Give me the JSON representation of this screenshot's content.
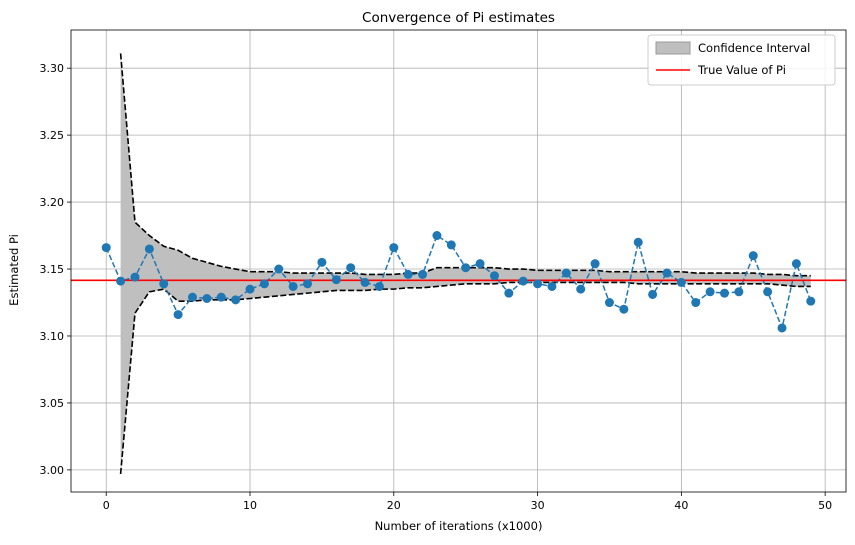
{
  "chart_data": {
    "type": "line",
    "title": "Convergence of Pi estimates",
    "xlabel": "Number of iterations (x1000)",
    "ylabel": "Estimated Pi",
    "xlim": [
      -2.45,
      51.45
    ],
    "ylim": [
      2.9835,
      3.3285
    ],
    "xticks": [
      0,
      10,
      20,
      30,
      40,
      50
    ],
    "xtick_labels": [
      "0",
      "10",
      "20",
      "30",
      "40",
      "50"
    ],
    "yticks": [
      3.0,
      3.05,
      3.1,
      3.15,
      3.2,
      3.25,
      3.3
    ],
    "ytick_labels": [
      "3.00",
      "3.05",
      "3.10",
      "3.15",
      "3.20",
      "3.25",
      "3.30"
    ],
    "grid": true,
    "legend_position": "top-right",
    "legend": [
      "Confidence Interval",
      "True Value of Pi"
    ],
    "colors": {
      "estimates": "#1f77b4",
      "true_value": "#ff0000",
      "interval_fill": "#bfbfbf",
      "interval_bounds": "#000000",
      "grid": "#b0b0b0"
    },
    "true_value": 3.14159,
    "series": [
      {
        "role": "estimates",
        "x": [
          0,
          1,
          2,
          3,
          4,
          5,
          6,
          7,
          8,
          9,
          10,
          11,
          12,
          13,
          14,
          15,
          16,
          17,
          18,
          19,
          20,
          21,
          22,
          23,
          24,
          25,
          26,
          27,
          28,
          29,
          30,
          31,
          32,
          33,
          34,
          35,
          36,
          37,
          38,
          39,
          40,
          41,
          42,
          43,
          44,
          45,
          46,
          47,
          48,
          49
        ],
        "values": [
          3.166,
          3.141,
          3.144,
          3.165,
          3.139,
          3.116,
          3.129,
          3.128,
          3.129,
          3.127,
          3.135,
          3.139,
          3.15,
          3.137,
          3.139,
          3.155,
          3.142,
          3.151,
          3.14,
          3.137,
          3.166,
          3.146,
          3.146,
          3.175,
          3.168,
          3.151,
          3.154,
          3.145,
          3.132,
          3.141,
          3.139,
          3.137,
          3.147,
          3.135,
          3.154,
          3.125,
          3.12,
          3.17,
          3.131,
          3.147,
          3.14,
          3.125,
          3.133,
          3.132,
          3.133,
          3.16,
          3.133,
          3.106,
          3.154,
          3.126
        ]
      },
      {
        "role": "interval",
        "x": [
          1,
          2,
          3,
          4,
          5,
          6,
          7,
          8,
          9,
          10,
          11,
          12,
          13,
          14,
          15,
          16,
          17,
          18,
          19,
          20,
          21,
          22,
          23,
          24,
          25,
          26,
          27,
          28,
          29,
          30,
          31,
          32,
          33,
          34,
          35,
          36,
          37,
          38,
          39,
          40,
          41,
          42,
          43,
          44,
          45,
          46,
          47,
          48,
          49
        ],
        "upper": [
          3.311,
          3.185,
          3.175,
          3.167,
          3.164,
          3.158,
          3.155,
          3.152,
          3.15,
          3.148,
          3.148,
          3.148,
          3.147,
          3.147,
          3.147,
          3.147,
          3.147,
          3.146,
          3.146,
          3.146,
          3.147,
          3.147,
          3.151,
          3.151,
          3.151,
          3.151,
          3.151,
          3.15,
          3.15,
          3.149,
          3.149,
          3.149,
          3.149,
          3.149,
          3.148,
          3.148,
          3.148,
          3.148,
          3.148,
          3.148,
          3.147,
          3.147,
          3.147,
          3.147,
          3.147,
          3.146,
          3.146,
          3.145,
          3.145
        ],
        "lower": [
          2.997,
          3.117,
          3.133,
          3.135,
          3.126,
          3.126,
          3.127,
          3.127,
          3.127,
          3.128,
          3.129,
          3.13,
          3.131,
          3.132,
          3.133,
          3.134,
          3.134,
          3.134,
          3.135,
          3.135,
          3.136,
          3.136,
          3.137,
          3.138,
          3.139,
          3.139,
          3.139,
          3.14,
          3.14,
          3.14,
          3.14,
          3.14,
          3.14,
          3.14,
          3.14,
          3.14,
          3.139,
          3.139,
          3.139,
          3.139,
          3.139,
          3.139,
          3.139,
          3.139,
          3.139,
          3.139,
          3.138,
          3.137,
          3.137
        ]
      }
    ]
  }
}
